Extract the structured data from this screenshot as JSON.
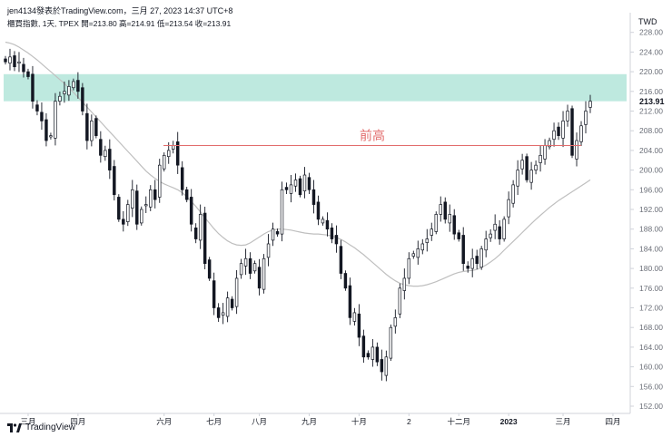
{
  "header": {
    "author_line": "jen4134發表於TradingView.com，三月 27, 2023 14:37 UTC+8"
  },
  "legend": {
    "symbol_line": "櫃買指數, 1天, TPEX  開=213.80  高=214.91  低=213.54  收=213.91"
  },
  "currency": "TWD",
  "brand": {
    "name": "TradingView",
    "icon": "tradingview-logo-icon"
  },
  "chart_data": {
    "type": "candlestick",
    "title": "櫃買指數",
    "interval": "1天",
    "exchange": "TPEX",
    "ohlc_last": {
      "open": 213.8,
      "high": 214.91,
      "low": 213.54,
      "close": 213.91
    },
    "last_price_label": "213.91",
    "ylim": [
      152,
      232
    ],
    "y_ticks": [
      228.0,
      224.0,
      220.0,
      216.0,
      212.0,
      208.0,
      204.0,
      200.0,
      196.0,
      192.0,
      188.0,
      184.0,
      180.0,
      176.0,
      172.0,
      168.0,
      164.0,
      160.0,
      156.0,
      152.0
    ],
    "x_tick_labels": [
      "三月",
      "四月",
      "六月",
      "七月",
      "八月",
      "九月",
      "十月",
      "2",
      "十二月",
      "2023",
      "三月",
      "四月"
    ],
    "x_tick_index": [
      5,
      16,
      35,
      46,
      56,
      67,
      78,
      89,
      100,
      111,
      123,
      134
    ],
    "close_series": [
      222,
      223,
      221,
      222,
      220,
      219,
      214,
      212,
      210,
      206,
      207,
      214,
      215,
      216,
      217,
      218,
      216,
      212,
      206,
      210,
      207,
      203,
      204,
      200,
      195,
      190,
      189,
      193,
      196,
      189,
      192,
      193,
      196,
      194,
      201,
      203,
      204,
      205,
      201,
      196,
      194,
      189,
      186,
      191,
      181,
      178,
      172,
      170,
      171,
      174,
      172,
      178,
      181,
      182,
      179,
      181,
      176,
      182,
      185,
      188,
      187,
      196,
      196,
      197,
      198,
      195,
      199,
      196,
      193,
      190,
      190,
      188,
      186,
      185,
      179,
      176,
      170,
      171,
      166,
      162,
      162,
      164,
      161,
      159,
      162,
      168,
      170,
      176,
      178,
      182,
      183,
      184,
      185,
      186,
      188,
      191,
      193,
      190,
      191,
      187,
      186,
      181,
      180,
      182,
      181,
      184,
      186,
      187,
      189,
      186,
      190,
      194,
      197,
      200,
      202,
      198,
      200,
      201,
      203,
      205,
      206,
      208,
      207,
      210,
      212,
      203,
      206,
      209,
      212,
      214
    ],
    "ma_series": [
      226,
      225.8,
      225.5,
      225,
      224.4,
      223.8,
      223.1,
      222.4,
      221.6,
      220.8,
      220,
      219.2,
      218.4,
      217.6,
      216.7,
      215.8,
      214.8,
      213.8,
      212.8,
      211.8,
      210.8,
      209.8,
      208.8,
      207.8,
      206.8,
      205.8,
      204.8,
      203.8,
      202.8,
      201.8,
      200.8,
      199.8,
      199,
      198.3,
      197.7,
      197.2,
      196.8,
      196.4,
      196,
      195.4,
      194.6,
      193.6,
      192.6,
      191.5,
      190.3,
      189.2,
      188.1,
      187.1,
      186.3,
      185.6,
      185.1,
      184.8,
      184.7,
      184.8,
      185.2,
      185.8,
      186.4,
      187,
      187.5,
      187.8,
      188,
      188,
      187.9,
      187.8,
      187.6,
      187.4,
      187.2,
      187.1,
      187,
      187,
      186.9,
      186.8,
      186.6,
      186.3,
      185.9,
      185.4,
      184.8,
      184.2,
      183.5,
      182.8,
      182,
      181.2,
      180.4,
      179.6,
      178.8,
      178.1,
      177.5,
      177,
      176.7,
      176.5,
      176.4,
      176.4,
      176.5,
      176.7,
      177,
      177.3,
      177.7,
      178.1,
      178.5,
      178.9,
      179.2,
      179.4,
      179.5,
      179.6,
      179.8,
      180.2,
      180.7,
      181.3,
      182,
      182.8,
      183.7,
      184.6,
      185.5,
      186.4,
      187.3,
      188.2,
      189.1,
      190,
      190.8,
      191.6,
      192.4,
      193.1,
      193.8,
      194.4,
      195,
      195.6,
      196.2,
      196.8,
      197.4,
      198
    ],
    "resistance_zone": {
      "from": 214,
      "to": 219.5,
      "color": "#b7e7dc"
    },
    "previous_high_line": {
      "value": 205,
      "label": "前高",
      "color": "#e26d6d"
    },
    "colors": {
      "candle": "#131722",
      "ma": "#bfbfbf",
      "grid": "#eaeaea",
      "axis_text": "#6b6f78"
    },
    "grid": false
  }
}
